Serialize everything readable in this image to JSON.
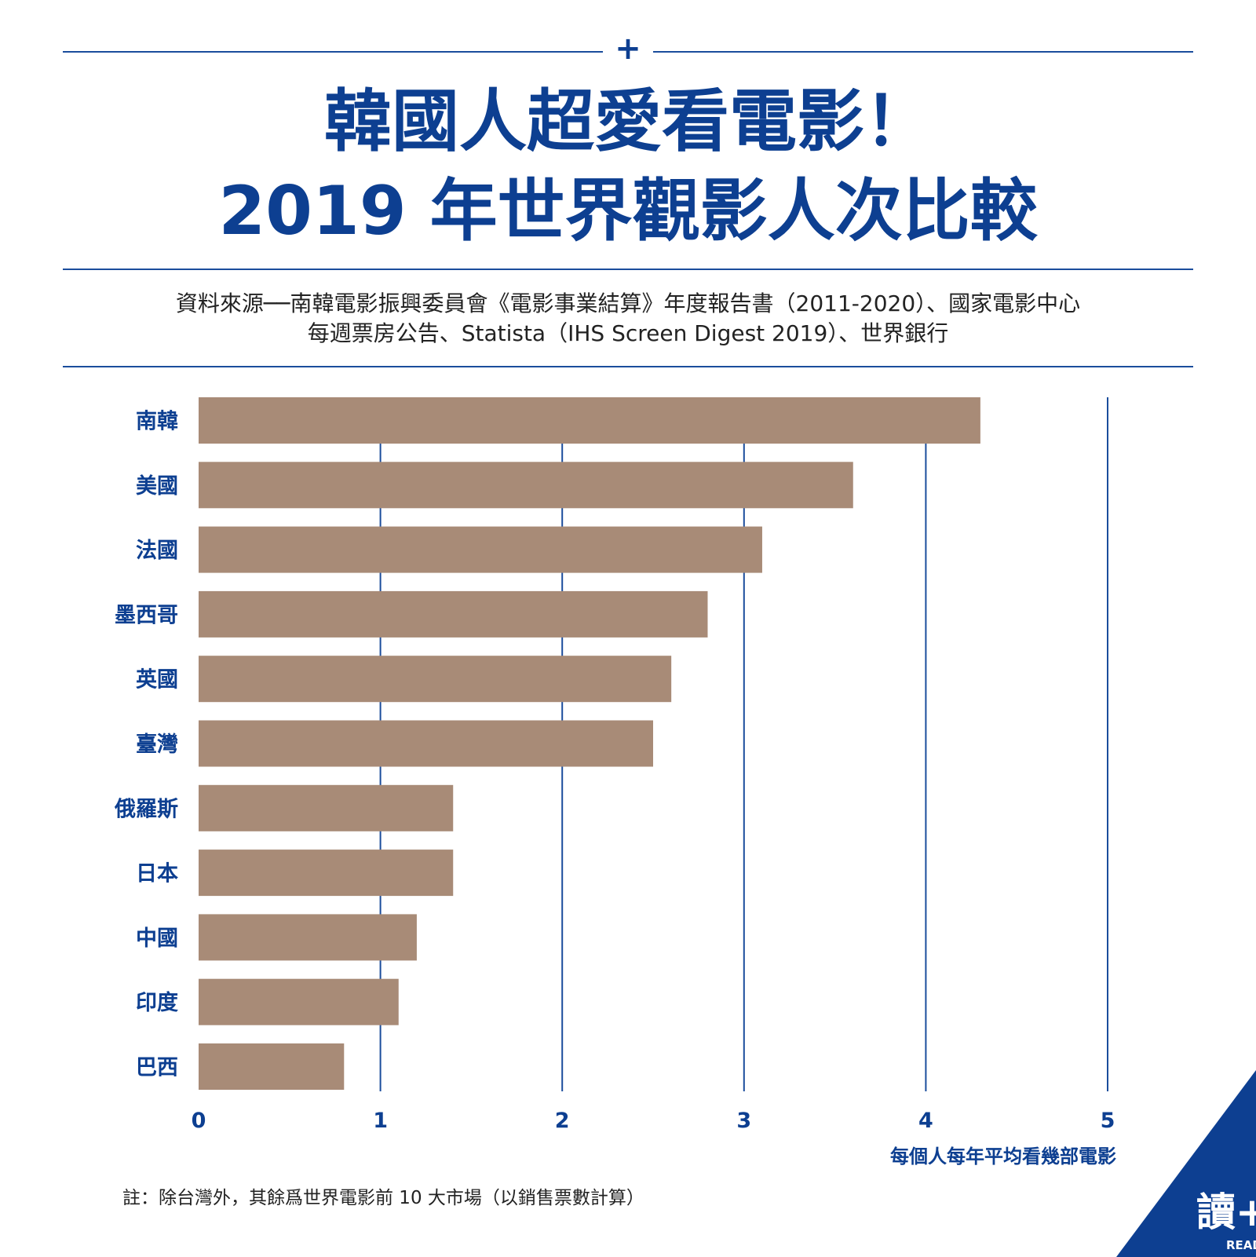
{
  "header": {
    "title_line1": "韓國人超愛看電影！",
    "title_line2": "2019 年世界觀影人次比較",
    "source_line1": "資料來源──南韓電影振興委員會《電影事業結算》年度報告書（2011-2020）、國家電影中心",
    "source_line2": "每週票房公告、Statista（IHS Screen Digest 2019）、世界銀行"
  },
  "chart_data": {
    "type": "bar",
    "orientation": "horizontal",
    "categories": [
      "南韓",
      "美國",
      "法國",
      "墨西哥",
      "英國",
      "臺灣",
      "俄羅斯",
      "日本",
      "中國",
      "印度",
      "巴西"
    ],
    "values": [
      4.3,
      3.6,
      3.1,
      2.8,
      2.6,
      2.5,
      1.4,
      1.4,
      1.2,
      1.1,
      0.8
    ],
    "xlabel": "每個人每年平均看幾部電影",
    "xlim": [
      0,
      5
    ],
    "xticks": [
      0,
      1,
      2,
      3,
      4,
      5
    ],
    "grid": true
  },
  "footer": {
    "note": "註：除台灣外，其餘爲世界電影前 10 大市場（以銷售票數計算）",
    "logo_text": "讀+",
    "logo_sub": "READr"
  },
  "colors": {
    "brand_blue": "#0d3f91",
    "bar": "#a88b77",
    "grid": "#1b4d9c"
  }
}
